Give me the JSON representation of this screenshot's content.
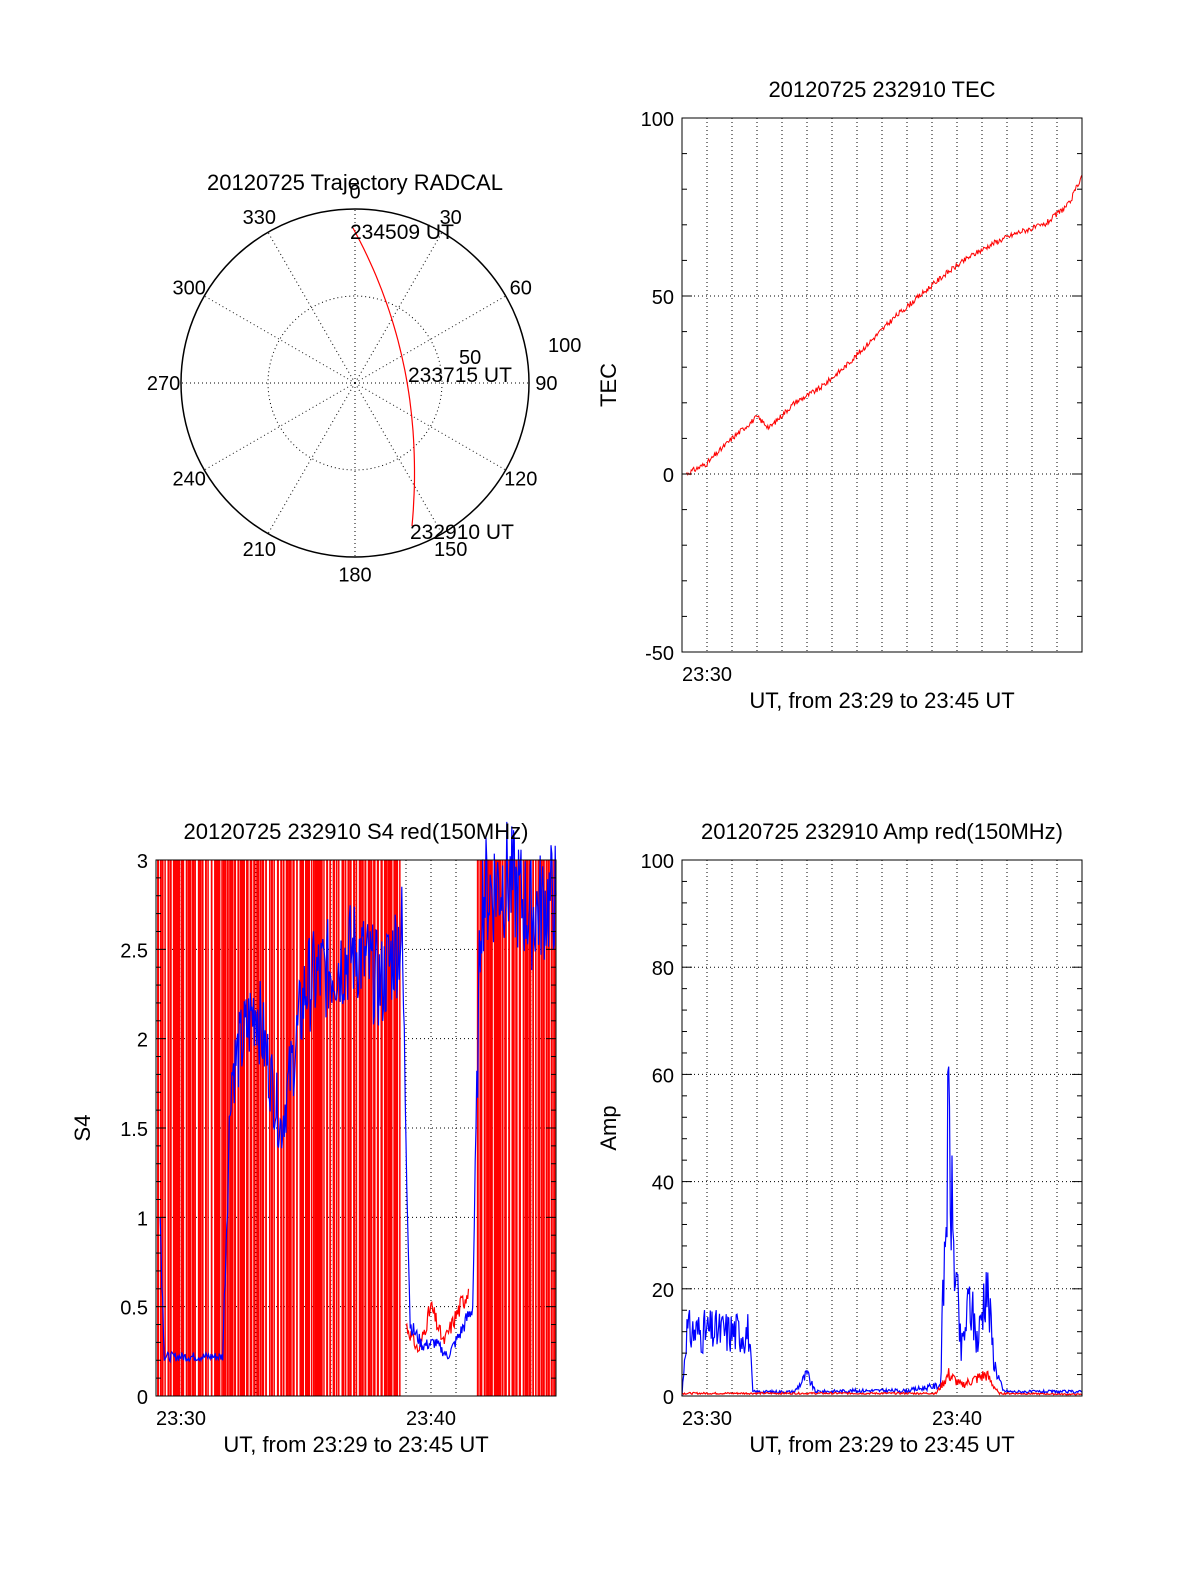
{
  "colors": {
    "red": "#ff0000",
    "blue": "#0000ff",
    "axis": "#000000",
    "grid": "#000000"
  },
  "chart_data": [
    {
      "id": "polar",
      "type": "polar",
      "title": "20120725 Trajectory RADCAL",
      "angle_labels": [
        "0",
        "30",
        "60",
        "90",
        "120",
        "150",
        "180",
        "210",
        "240",
        "270",
        "300",
        "330"
      ],
      "radial_labels": [
        "50",
        "100"
      ],
      "radial_range": [
        0,
        100
      ],
      "grid": true,
      "trajectory": {
        "color": "red",
        "points": [
          [
            163,
            95
          ],
          [
            164,
            90
          ],
          [
            167,
            80
          ],
          [
            170,
            70
          ],
          [
            173,
            60
          ],
          [
            176,
            50
          ],
          [
            179,
            40
          ],
          [
            182,
            30
          ],
          [
            185,
            20
          ],
          [
            188,
            10
          ],
          [
            192,
            5
          ],
          [
            196,
            2
          ],
          [
            200,
            -2
          ],
          [
            206,
            -6
          ],
          [
            213,
            -10
          ],
          [
            222,
            -14
          ],
          [
            238,
            -18
          ],
          [
            263,
            -20
          ],
          [
            290,
            -18
          ],
          [
            305,
            -16
          ]
        ],
        "labels": [
          {
            "text": "232910 UT"
          },
          {
            "text": "233715 UT"
          },
          {
            "text": "234509 UT"
          }
        ]
      }
    },
    {
      "id": "tec",
      "type": "line",
      "title": "20120725 232910 TEC",
      "xlabel": "UT, from 23:29 to 23:45 UT",
      "ylabel": "TEC",
      "xlim": [
        "23:29",
        "23:45"
      ],
      "ylim": [
        -50,
        100
      ],
      "yticks": [
        "-50",
        "0",
        "50",
        "100"
      ],
      "xticks": [
        "23:30"
      ],
      "grid": true,
      "series": [
        {
          "color": "red",
          "x": [
            "23:29:10",
            "23:30:00",
            "23:31:00",
            "23:32:00",
            "23:32:30",
            "23:33:30",
            "23:34:30",
            "23:35:30",
            "23:36:30",
            "23:37:30",
            "23:38:30",
            "23:39:30",
            "23:40:30",
            "23:41:30",
            "23:42:30",
            "23:43:30",
            "23:44:30",
            "23:45:00"
          ],
          "y": [
            0,
            3,
            10,
            16,
            13,
            20,
            24,
            30,
            37,
            44,
            50,
            56,
            61,
            65,
            68,
            70,
            76,
            84
          ]
        }
      ]
    },
    {
      "id": "s4",
      "type": "line",
      "title": "20120725 232910 S4 red(150MHz)",
      "xlabel": "UT, from 23:29 to 23:45 UT",
      "ylabel": "S4",
      "xlim": [
        "23:29",
        "23:45"
      ],
      "ylim": [
        0,
        3
      ],
      "yticks": [
        "0",
        "0.5",
        "1",
        "1.5",
        "2",
        "2.5",
        "3"
      ],
      "xticks": [
        "23:30",
        "23:40"
      ],
      "grid": true,
      "series": [
        {
          "color": "red",
          "style": "dense vertical spikes to 3 except 23:38:50-23:41:50",
          "x": [
            "23:39:00",
            "23:39:30",
            "23:40:00",
            "23:40:30",
            "23:41:00",
            "23:41:30"
          ],
          "y": [
            0.4,
            0.25,
            0.5,
            0.3,
            0.45,
            0.6
          ]
        },
        {
          "color": "blue",
          "x": [
            "23:29:10",
            "23:29:20",
            "23:30:00",
            "23:31:00",
            "23:31:40",
            "23:32:00",
            "23:33:00",
            "23:34:00",
            "23:35:00",
            "23:36:00",
            "23:37:00",
            "23:38:00",
            "23:38:50",
            "23:39:10",
            "23:39:40",
            "23:40:10",
            "23:40:40",
            "23:41:10",
            "23:41:40",
            "23:42:00",
            "23:43:00",
            "23:44:00",
            "23:45:00"
          ],
          "y": [
            1.0,
            0.22,
            0.22,
            0.22,
            0.22,
            1.8,
            2.2,
            1.5,
            2.3,
            2.4,
            2.5,
            2.3,
            2.6,
            0.4,
            0.28,
            0.3,
            0.22,
            0.35,
            0.5,
            2.8,
            2.9,
            2.7,
            2.8
          ]
        }
      ]
    },
    {
      "id": "amp",
      "type": "line",
      "title": "20120725 232910 Amp red(150MHz)",
      "xlabel": "UT, from 23:29 to 23:45 UT",
      "ylabel": "Amp",
      "xlim": [
        "23:29",
        "23:45"
      ],
      "ylim": [
        0,
        100
      ],
      "yticks": [
        "0",
        "20",
        "40",
        "60",
        "80",
        "100"
      ],
      "xticks": [
        "23:30",
        "23:40"
      ],
      "grid": true,
      "series": [
        {
          "color": "blue",
          "x": [
            "23:29:00",
            "23:29:10",
            "23:31:40",
            "23:31:50",
            "23:33:30",
            "23:34:00",
            "23:34:20",
            "23:36:00",
            "23:38:00",
            "23:39:20",
            "23:39:40",
            "23:39:50",
            "23:40:10",
            "23:40:30",
            "23:40:50",
            "23:41:10",
            "23:41:30",
            "23:41:50",
            "23:42:10",
            "23:43:00",
            "23:45:00"
          ],
          "y": [
            0,
            12,
            12,
            0.8,
            0.8,
            4,
            0.8,
            1,
            1,
            2,
            50,
            30,
            8,
            18,
            10,
            22,
            6,
            1,
            0.8,
            0.8,
            0.8
          ]
        },
        {
          "color": "red",
          "x": [
            "23:29:00",
            "23:39:10",
            "23:39:40",
            "23:40:10",
            "23:40:40",
            "23:41:10",
            "23:41:40",
            "23:45:00"
          ],
          "y": [
            0.5,
            0.5,
            4,
            2,
            3,
            4,
            0.5,
            0.3
          ]
        }
      ]
    }
  ]
}
